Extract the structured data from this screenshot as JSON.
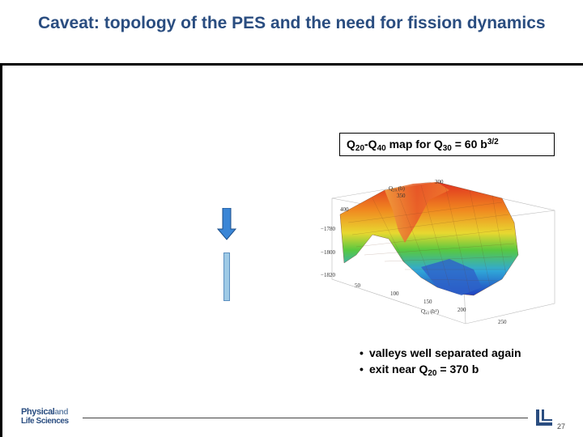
{
  "slide": {
    "title": "Caveat: topology of the PES and the need for fission dynamics",
    "page_number": "27"
  },
  "caption": {
    "q_main": "Q",
    "sub20": "20",
    "dash": "-Q",
    "sub40": "40",
    "mid": " map for Q",
    "sub30": "30",
    "eq": " = 60 b",
    "sup": "3/2"
  },
  "plot": {
    "label_q20_axis": "Q₂₀ (b)",
    "label_q40_axis": "Q₄₀ (b²)",
    "tick_300": "300",
    "tick_350": "350",
    "tick_400": "400",
    "tick_m1780": "−1780",
    "tick_m1800": "−1800",
    "tick_m1820": "−1820",
    "tick_50": "50",
    "tick_100": "100",
    "tick_150": "150",
    "tick_200": "200",
    "tick_250": "250"
  },
  "bullets": {
    "b1": "valleys well separated again",
    "b2_prefix": "exit near Q",
    "b2_sub": "20",
    "b2_suffix": " = 370 b",
    "marker": "•"
  },
  "logo": {
    "line1a": "Physical",
    "line1b": "and",
    "line2": "Life Sciences"
  },
  "colors": {
    "title": "#2a4d80",
    "arrow_fill": "#3b86d6"
  }
}
